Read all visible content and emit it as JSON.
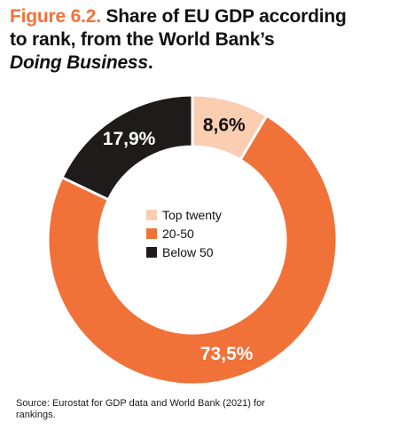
{
  "title": {
    "figure_label": "Figure 6.2.",
    "text_line1": "Share of EU GDP according",
    "text_line2": "to rank, from the World Bank’s",
    "text_italic": "Doing Business",
    "text_end": "."
  },
  "source": "Source: Eurostat for GDP data and World Bank (2021) for rankings.",
  "colors": {
    "top_twenty": "#fbcdb1",
    "twenty_fifty": "#f07239",
    "below_fifty": "#1f1b1b",
    "title_accent": "#f07239"
  },
  "chart_data": {
    "type": "pie",
    "donut": true,
    "series": [
      {
        "name": "Top twenty",
        "value": 8.6,
        "label": "8,6%"
      },
      {
        "name": "20-50",
        "value": 73.5,
        "label": "73,5%"
      },
      {
        "name": "Below 50",
        "value": 17.9,
        "label": "17,9%"
      }
    ],
    "legend_placement": "center"
  }
}
